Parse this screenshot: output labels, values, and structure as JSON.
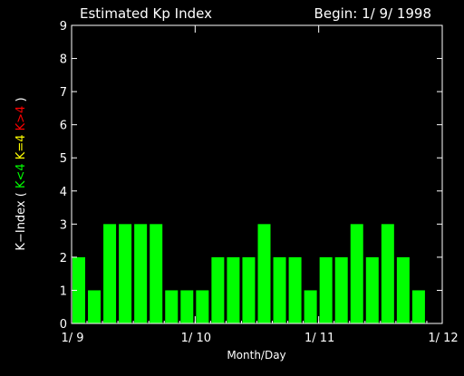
{
  "chart_data": {
    "type": "bar",
    "title": "Estimated Kp Index",
    "begin_label": "Begin: 1/ 9/ 1998",
    "xlabel": "Month/Day",
    "ylabel_parts": [
      {
        "text": "K−Index ( ",
        "color": "#ffffff"
      },
      {
        "text": "K<4 ",
        "color": "#00ff00"
      },
      {
        "text": "K=4 ",
        "color": "#ffff00"
      },
      {
        "text": "K>4",
        "color": "#ff0000"
      },
      {
        "text": " )",
        "color": "#ffffff"
      }
    ],
    "ylim": [
      0,
      9
    ],
    "yticks": [
      "0",
      "1",
      "2",
      "3",
      "4",
      "5",
      "6",
      "7",
      "8",
      "9"
    ],
    "xlim": [
      0,
      24
    ],
    "xticks": [
      {
        "x": 0,
        "label": "1/ 9"
      },
      {
        "x": 8,
        "label": "1/ 10"
      },
      {
        "x": 16,
        "label": "1/ 11"
      },
      {
        "x": 24,
        "label": "1/ 12"
      }
    ],
    "bar_values": [
      2,
      1,
      3,
      3,
      3,
      3,
      1,
      1,
      1,
      2,
      2,
      2,
      3,
      2,
      2,
      1,
      2,
      2,
      3,
      2,
      3,
      2,
      1
    ],
    "bar_color": "#00ff00",
    "axis_color": "#ffffff",
    "background": "#000000"
  }
}
